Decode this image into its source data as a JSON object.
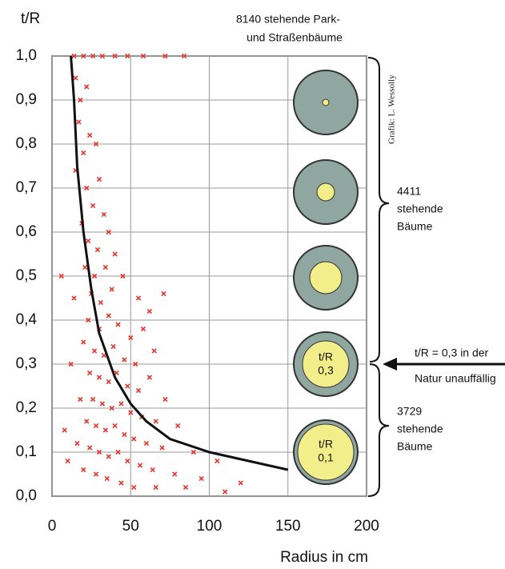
{
  "chart_data": {
    "type": "scatter",
    "y_axis_label": "t/R",
    "x_axis_label": "Radius in cm",
    "annotations": {
      "total_line1": "8140 stehende Park-",
      "total_line2": "und Straßenbäume",
      "upper_count": "4411",
      "upper_text1": "stehende",
      "upper_text2": "Bäume",
      "lower_count": "3729",
      "lower_text1": "stehende",
      "lower_text2": "Bäume",
      "arrow_line1": "t/R = 0,3 in der",
      "arrow_line2": "Natur unauffällig",
      "credit": "Grafik: L. Wessolly",
      "circle_a_line1": "t/R",
      "circle_a_line2": "0,3",
      "circle_b_line1": "t/R",
      "circle_b_line2": "0,1"
    },
    "xlim": [
      0,
      200
    ],
    "ylim": [
      0,
      1
    ],
    "xticks": [
      0,
      50,
      100,
      150,
      200
    ],
    "yticks": [
      {
        "value": 0,
        "label": "0,0"
      },
      {
        "value": 0.1,
        "label": "0,1"
      },
      {
        "value": 0.2,
        "label": "0,2"
      },
      {
        "value": 0.3,
        "label": "0,3"
      },
      {
        "value": 0.4,
        "label": "0,4"
      },
      {
        "value": 0.5,
        "label": "0,5"
      },
      {
        "value": 0.6,
        "label": "0,6"
      },
      {
        "value": 0.7,
        "label": "0,7"
      },
      {
        "value": 0.8,
        "label": "0,8"
      },
      {
        "value": 0.9,
        "label": "0,9"
      },
      {
        "value": 1,
        "label": "1,0"
      }
    ],
    "grid": true,
    "points": {
      "color": "#e8322a",
      "x": [
        14,
        20,
        26,
        32,
        40,
        48,
        58,
        72,
        84,
        15,
        18,
        22,
        17,
        24,
        20,
        28,
        15,
        22,
        30,
        26,
        19,
        33,
        23,
        29,
        36,
        21,
        27,
        34,
        40,
        25,
        31,
        38,
        45,
        55,
        62,
        71,
        23,
        30,
        36,
        42,
        50,
        58,
        20,
        27,
        33,
        39,
        46,
        53,
        65,
        24,
        30,
        36,
        41,
        48,
        55,
        62,
        72,
        18,
        26,
        32,
        38,
        44,
        50,
        57,
        66,
        80,
        22,
        28,
        34,
        40,
        46,
        52,
        60,
        70,
        90,
        105,
        16,
        24,
        30,
        36,
        42,
        48,
        56,
        64,
        78,
        95,
        120,
        20,
        28,
        35,
        44,
        52,
        66,
        85,
        110,
        8,
        10,
        12,
        6,
        14
      ],
      "y": [
        1,
        1,
        1,
        1,
        1,
        1,
        1,
        1,
        1,
        0.95,
        0.9,
        0.93,
        0.85,
        0.82,
        0.78,
        0.8,
        0.74,
        0.7,
        0.72,
        0.66,
        0.62,
        0.64,
        0.58,
        0.56,
        0.6,
        0.52,
        0.5,
        0.52,
        0.55,
        0.46,
        0.44,
        0.47,
        0.5,
        0.45,
        0.42,
        0.46,
        0.4,
        0.38,
        0.41,
        0.39,
        0.36,
        0.38,
        0.35,
        0.33,
        0.32,
        0.34,
        0.31,
        0.3,
        0.33,
        0.28,
        0.27,
        0.26,
        0.28,
        0.25,
        0.24,
        0.27,
        0.22,
        0.22,
        0.22,
        0.21,
        0.2,
        0.21,
        0.19,
        0.18,
        0.17,
        0.16,
        0.17,
        0.16,
        0.15,
        0.16,
        0.14,
        0.13,
        0.12,
        0.11,
        0.1,
        0.08,
        0.12,
        0.11,
        0.1,
        0.09,
        0.1,
        0.08,
        0.07,
        0.06,
        0.05,
        0.04,
        0.03,
        0.06,
        0.05,
        0.04,
        0.03,
        0.02,
        0.02,
        0.02,
        0.01,
        0.15,
        0.08,
        0.3,
        0.5,
        0.45
      ]
    },
    "curve": {
      "color": "#111111",
      "x": [
        12,
        14,
        16,
        20,
        25,
        30,
        40,
        50,
        60,
        75,
        100,
        125,
        150
      ],
      "y": [
        1,
        0.9,
        0.75,
        0.6,
        0.47,
        0.37,
        0.27,
        0.21,
        0.17,
        0.13,
        0.1,
        0.08,
        0.06
      ]
    }
  }
}
